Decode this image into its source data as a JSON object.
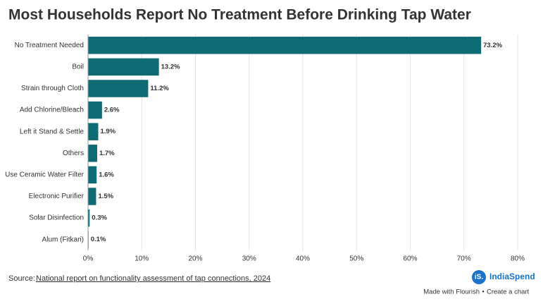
{
  "chart_data": {
    "type": "hbar",
    "title": "Most Households Report No Treatment Before Drinking Tap Water",
    "categories": [
      "No Treatment Needed",
      "Boil",
      "Strain through Cloth",
      "Add Chlorine/Bleach",
      "Left it Stand & Settle",
      "Others",
      "Use Ceramic Water Filter",
      "Electronic Purifier",
      "Solar Disinfection",
      "Alum (Fitkari)"
    ],
    "values": [
      73.2,
      13.2,
      11.2,
      2.6,
      1.9,
      1.7,
      1.6,
      1.5,
      0.3,
      0.1
    ],
    "value_labels": [
      "73.2%",
      "13.2%",
      "11.2%",
      "2.6%",
      "1.9%",
      "1.7%",
      "1.6%",
      "1.5%",
      "0.3%",
      "0.1%"
    ],
    "color": "#0e6b73",
    "xlim": [
      0,
      80
    ],
    "xticks": [
      {
        "value": 0,
        "label": "0%"
      },
      {
        "value": 10,
        "label": "10%"
      },
      {
        "value": 20,
        "label": "20%"
      },
      {
        "value": 30,
        "label": "30%"
      },
      {
        "value": 40,
        "label": "40%"
      },
      {
        "value": 50,
        "label": "50%"
      },
      {
        "value": 60,
        "label": "60%"
      },
      {
        "value": 70,
        "label": "70%"
      },
      {
        "value": 80,
        "label": "80%"
      }
    ],
    "grid": true,
    "source_label": "Source:",
    "source_link": "National report on functionality assessment of tap connections, 2024",
    "logo_mark": "iS.",
    "logo_name": "IndiaSpend",
    "footer_made": "Made with Flourish",
    "footer_sep": "•",
    "footer_create": "Create a chart"
  }
}
